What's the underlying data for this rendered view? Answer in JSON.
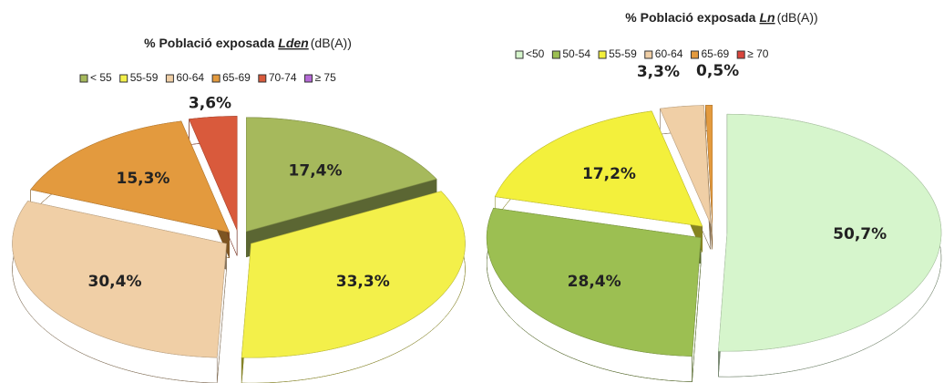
{
  "chart_data": [
    {
      "type": "pie",
      "title": [
        "% Població exposada",
        "Lden",
        "(dB(A))"
      ],
      "categories": [
        "< 55",
        "55-59",
        "60-64",
        "65-69",
        "70-74",
        "≥ 75"
      ],
      "values": [
        17.4,
        33.3,
        30.4,
        15.3,
        3.6,
        0
      ],
      "value_labels": [
        "17,4%",
        "33,3%",
        "30,4%",
        "15,3%",
        "3,6%",
        null
      ],
      "colors": [
        "#a6b95c",
        "#f3f04a",
        "#f0cfa6",
        "#e39a3e",
        "#d95a3c",
        "#b56ad6"
      ]
    },
    {
      "type": "pie",
      "title": [
        "% Població exposada",
        "Ln",
        "(dB(A))"
      ],
      "categories": [
        "<50",
        "50-54",
        "55-59",
        "60-64",
        "65-69",
        "≥ 70"
      ],
      "values": [
        50.7,
        28.4,
        17.2,
        3.3,
        0.5,
        0
      ],
      "value_labels": [
        "50,7%",
        "28,4%",
        "17,2%",
        "3,3%",
        "0,5%",
        null
      ],
      "colors": [
        "#d6f5cc",
        "#9cbf52",
        "#f3f03c",
        "#f0cfa6",
        "#e39a3e",
        "#d9453c"
      ]
    }
  ]
}
